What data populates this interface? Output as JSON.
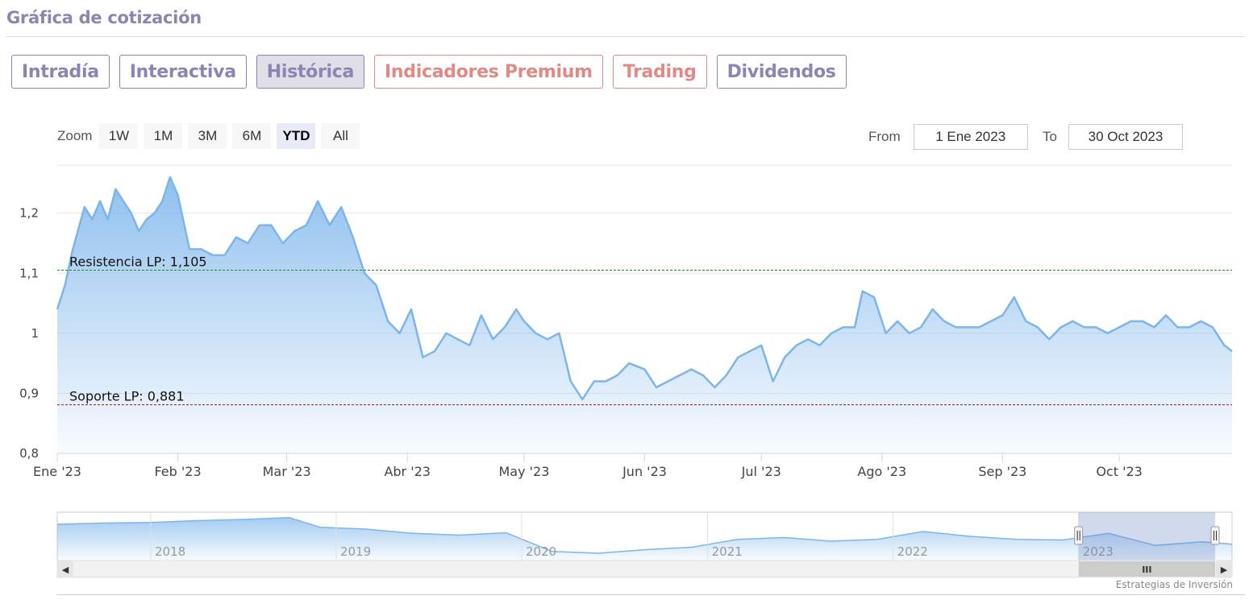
{
  "header": {
    "title": "Gráfica de cotización"
  },
  "tabs": [
    {
      "label": "Intradía",
      "state": "normal"
    },
    {
      "label": "Interactiva",
      "state": "normal"
    },
    {
      "label": "Histórica",
      "state": "active"
    },
    {
      "label": "Indicadores Premium",
      "state": "premium"
    },
    {
      "label": "Trading",
      "state": "premium"
    },
    {
      "label": "Dividendos",
      "state": "normal"
    }
  ],
  "zoom": {
    "label": "Zoom",
    "buttons": [
      "1W",
      "1M",
      "3M",
      "6M",
      "YTD",
      "All"
    ],
    "selected": "YTD"
  },
  "range": {
    "from_label": "From",
    "from_value": "1 Ene 2023",
    "to_label": "To",
    "to_value": "30 Oct 2023"
  },
  "credit": "Estrategias de Inversión",
  "colors": {
    "accent": "#8c84b3",
    "premium": "#e08a85",
    "series_line": "#7cb5ec",
    "resistance": "#1a8a1a",
    "support": "#8b1a1a"
  },
  "chart_data": {
    "type": "area",
    "title": "",
    "x_type": "date",
    "x_range": [
      "2023-01-01",
      "2023-10-30"
    ],
    "ylim": [
      0.8,
      1.28
    ],
    "y_ticks": [
      0.8,
      0.9,
      1.0,
      1.1,
      1.2
    ],
    "y_tick_labels": [
      "0,8",
      "0,9",
      "1",
      "1,1",
      "1,2"
    ],
    "x_ticks": [
      {
        "date": "2023-01-01",
        "label": "Ene '23"
      },
      {
        "date": "2023-02-01",
        "label": "Feb '23"
      },
      {
        "date": "2023-03-01",
        "label": "Mar '23"
      },
      {
        "date": "2023-04-01",
        "label": "Abr '23"
      },
      {
        "date": "2023-05-01",
        "label": "May '23"
      },
      {
        "date": "2023-06-01",
        "label": "Jun '23"
      },
      {
        "date": "2023-07-01",
        "label": "Jul '23"
      },
      {
        "date": "2023-08-01",
        "label": "Ago '23"
      },
      {
        "date": "2023-09-01",
        "label": "Sep '23"
      },
      {
        "date": "2023-10-01",
        "label": "Oct '23"
      }
    ],
    "grid": true,
    "series": [
      {
        "x": [
          "2023-01-01",
          "2023-01-03",
          "2023-01-05",
          "2023-01-08",
          "2023-01-10",
          "2023-01-12",
          "2023-01-14",
          "2023-01-16",
          "2023-01-18",
          "2023-01-20",
          "2023-01-22",
          "2023-01-24",
          "2023-01-26",
          "2023-01-28",
          "2023-01-30",
          "2023-02-01",
          "2023-02-04",
          "2023-02-07",
          "2023-02-10",
          "2023-02-13",
          "2023-02-16",
          "2023-02-19",
          "2023-02-22",
          "2023-02-25",
          "2023-02-28",
          "2023-03-03",
          "2023-03-06",
          "2023-03-09",
          "2023-03-12",
          "2023-03-15",
          "2023-03-18",
          "2023-03-21",
          "2023-03-24",
          "2023-03-27",
          "2023-03-30",
          "2023-04-02",
          "2023-04-05",
          "2023-04-08",
          "2023-04-11",
          "2023-04-14",
          "2023-04-17",
          "2023-04-20",
          "2023-04-23",
          "2023-04-26",
          "2023-04-29",
          "2023-05-01",
          "2023-05-04",
          "2023-05-07",
          "2023-05-10",
          "2023-05-13",
          "2023-05-16",
          "2023-05-19",
          "2023-05-22",
          "2023-05-25",
          "2023-05-28",
          "2023-06-01",
          "2023-06-04",
          "2023-06-07",
          "2023-06-10",
          "2023-06-13",
          "2023-06-16",
          "2023-06-19",
          "2023-06-22",
          "2023-06-25",
          "2023-06-28",
          "2023-07-01",
          "2023-07-04",
          "2023-07-07",
          "2023-07-10",
          "2023-07-13",
          "2023-07-16",
          "2023-07-19",
          "2023-07-22",
          "2023-07-25",
          "2023-07-27",
          "2023-07-30",
          "2023-08-02",
          "2023-08-05",
          "2023-08-08",
          "2023-08-11",
          "2023-08-14",
          "2023-08-17",
          "2023-08-20",
          "2023-08-23",
          "2023-08-26",
          "2023-08-29",
          "2023-09-01",
          "2023-09-04",
          "2023-09-07",
          "2023-09-10",
          "2023-09-13",
          "2023-09-16",
          "2023-09-19",
          "2023-09-22",
          "2023-09-25",
          "2023-09-28",
          "2023-10-01",
          "2023-10-04",
          "2023-10-07",
          "2023-10-10",
          "2023-10-13",
          "2023-10-16",
          "2023-10-19",
          "2023-10-22",
          "2023-10-25",
          "2023-10-28",
          "2023-10-30"
        ],
        "values": [
          1.04,
          1.08,
          1.14,
          1.21,
          1.19,
          1.22,
          1.19,
          1.24,
          1.22,
          1.2,
          1.17,
          1.19,
          1.2,
          1.22,
          1.26,
          1.23,
          1.14,
          1.14,
          1.13,
          1.13,
          1.16,
          1.15,
          1.18,
          1.18,
          1.15,
          1.17,
          1.18,
          1.22,
          1.18,
          1.21,
          1.16,
          1.1,
          1.08,
          1.02,
          1.0,
          1.04,
          0.96,
          0.97,
          1.0,
          0.99,
          0.98,
          1.03,
          0.99,
          1.01,
          1.04,
          1.02,
          1.0,
          0.99,
          1.0,
          0.92,
          0.89,
          0.92,
          0.92,
          0.93,
          0.95,
          0.94,
          0.91,
          0.92,
          0.93,
          0.94,
          0.93,
          0.91,
          0.93,
          0.96,
          0.97,
          0.98,
          0.92,
          0.96,
          0.98,
          0.99,
          0.98,
          1.0,
          1.01,
          1.01,
          1.07,
          1.06,
          1.0,
          1.02,
          1.0,
          1.01,
          1.04,
          1.02,
          1.01,
          1.01,
          1.01,
          1.02,
          1.03,
          1.06,
          1.02,
          1.01,
          0.99,
          1.01,
          1.02,
          1.01,
          1.01,
          1.0,
          1.01,
          1.02,
          1.02,
          1.01,
          1.03,
          1.01,
          1.01,
          1.02,
          1.01,
          0.98,
          0.97
        ]
      }
    ],
    "plot_lines": [
      {
        "label": "Resistencia LP: 1,105",
        "value": 1.105,
        "style": "dashed",
        "color": "#1a8a1a"
      },
      {
        "label": "Soporte LP: 0,881",
        "value": 0.881,
        "style": "dashed",
        "color": "#8b1a1a"
      }
    ],
    "navigator": {
      "x_range": [
        "2017-07-01",
        "2023-10-30"
      ],
      "selected_range": [
        "2023-01-01",
        "2023-10-30"
      ],
      "year_labels": [
        "2018",
        "2019",
        "2020",
        "2021",
        "2022",
        "2023"
      ],
      "series": {
        "x": [
          "2017-07-01",
          "2017-10-01",
          "2018-01-01",
          "2018-04-01",
          "2018-07-01",
          "2018-10-01",
          "2018-12-01",
          "2019-03-01",
          "2019-06-01",
          "2019-09-01",
          "2019-12-01",
          "2020-03-01",
          "2020-06-01",
          "2020-09-01",
          "2020-12-01",
          "2021-03-01",
          "2021-06-01",
          "2021-09-01",
          "2021-12-01",
          "2022-03-01",
          "2022-06-01",
          "2022-09-01",
          "2022-12-01",
          "2023-03-01",
          "2023-06-01",
          "2023-09-01",
          "2023-10-30"
        ],
        "values": [
          1.3,
          1.32,
          1.33,
          1.36,
          1.38,
          1.41,
          1.25,
          1.22,
          1.15,
          1.12,
          1.16,
          0.85,
          0.82,
          0.88,
          0.92,
          1.05,
          1.08,
          1.02,
          1.05,
          1.18,
          1.1,
          1.05,
          1.04,
          1.15,
          0.95,
          1.01,
          0.97
        ]
      }
    },
    "scroll_track": {
      "arrow_left": "◀",
      "arrow_right": "▶",
      "thumb_grip": "III"
    }
  }
}
